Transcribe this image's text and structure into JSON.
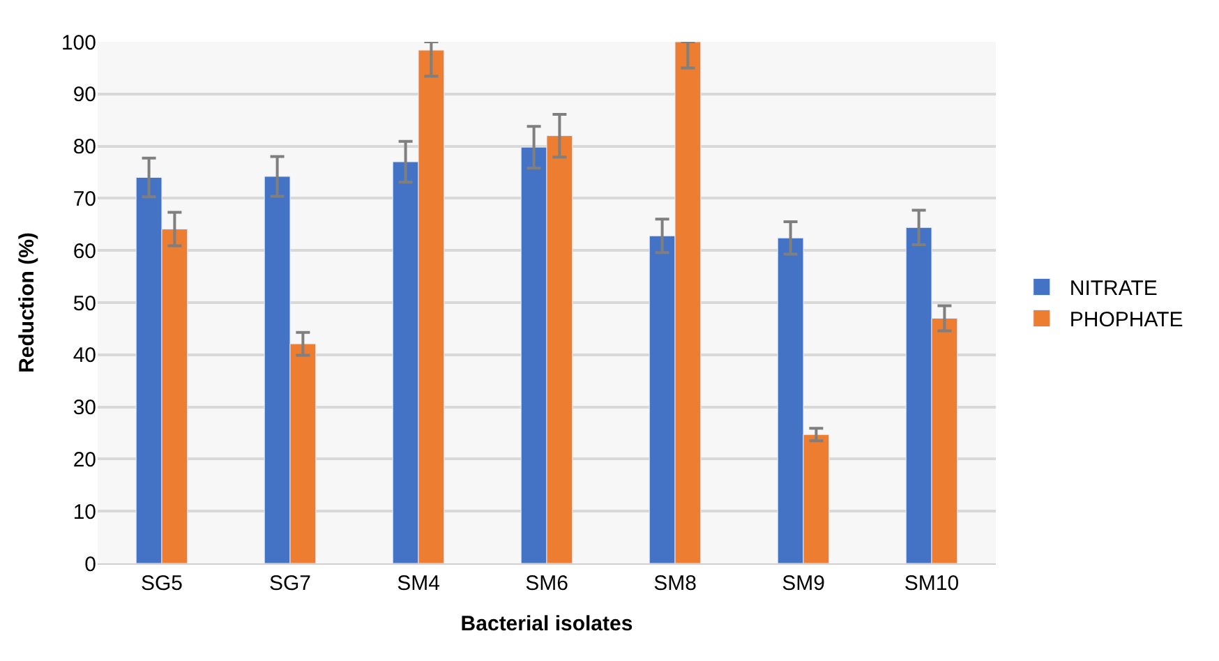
{
  "chart_data": {
    "type": "bar",
    "xlabel": "Bacterial isolates",
    "ylabel": "Reduction (%)",
    "categories": [
      "SG5",
      "SG7",
      "SM4",
      "SM6",
      "SM8",
      "SM9",
      "SM10"
    ],
    "series": [
      {
        "name": "NITRATE",
        "color": "#4472c4",
        "values": [
          74,
          74.2,
          77,
          79.8,
          62.8,
          62.4,
          64.4
        ],
        "errors": [
          3.7,
          3.8,
          3.9,
          4,
          3.2,
          3.1,
          3.3
        ]
      },
      {
        "name": "PHOPHATE",
        "color": "#ed7d31",
        "values": [
          64.1,
          42.1,
          98.4,
          82,
          100,
          24.7,
          47
        ],
        "errors": [
          3.2,
          2.2,
          [
            93.4,
            100
          ],
          4.1,
          [
            95,
            100
          ],
          1.2,
          2.4
        ]
      }
    ],
    "ylim": [
      0,
      100
    ],
    "yticks": [
      0,
      10,
      20,
      30,
      40,
      50,
      60,
      70,
      80,
      90,
      100
    ],
    "grid": "y",
    "legend": "right"
  }
}
